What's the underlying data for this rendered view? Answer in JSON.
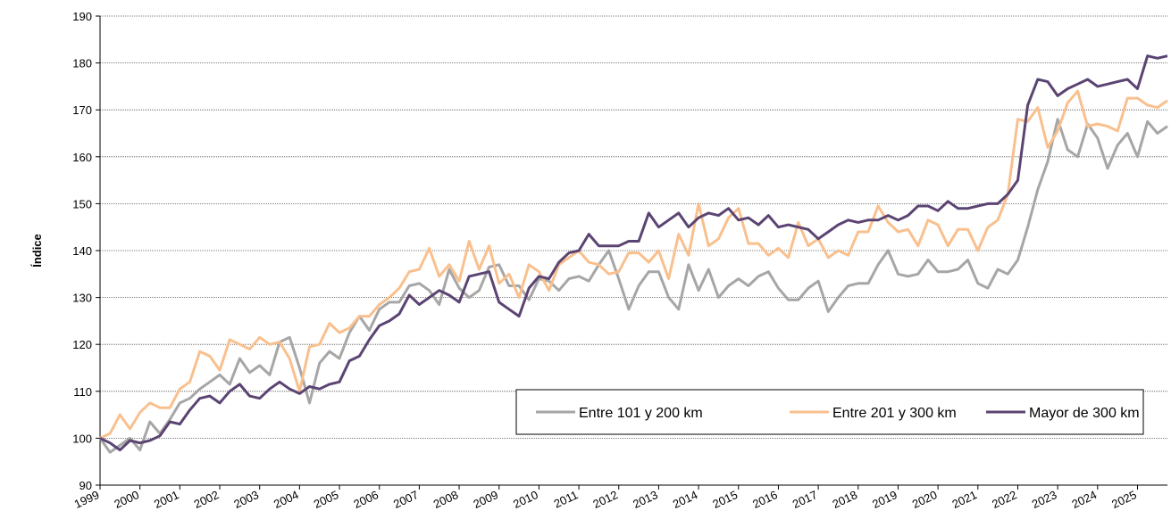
{
  "chart_data": {
    "type": "line",
    "ylabel": "Índice",
    "x": [
      1999,
      1999.25,
      1999.5,
      1999.75,
      2000,
      2000.25,
      2000.5,
      2000.75,
      2001,
      2001.25,
      2001.5,
      2001.75,
      2002,
      2002.25,
      2002.5,
      2002.75,
      2003,
      2003.25,
      2003.5,
      2003.75,
      2004,
      2004.25,
      2004.5,
      2004.75,
      2005,
      2005.25,
      2005.5,
      2005.75,
      2006,
      2006.25,
      2006.5,
      2006.75,
      2007,
      2007.25,
      2007.5,
      2007.75,
      2008,
      2008.25,
      2008.5,
      2008.75,
      2009,
      2009.25,
      2009.5,
      2009.75,
      2010,
      2010.25,
      2010.5,
      2010.75,
      2011,
      2011.25,
      2011.5,
      2011.75,
      2012,
      2012.25,
      2012.5,
      2012.75,
      2013,
      2013.25,
      2013.5,
      2013.75,
      2014,
      2014.25,
      2014.5,
      2014.75,
      2015,
      2015.25,
      2015.5,
      2015.75,
      2016,
      2016.25,
      2016.5,
      2016.75,
      2017,
      2017.25,
      2017.5,
      2017.75,
      2018,
      2018.25,
      2018.5,
      2018.75,
      2019,
      2019.25,
      2019.5,
      2019.75,
      2020,
      2020.25,
      2020.5,
      2020.75,
      2021,
      2021.25,
      2021.5,
      2021.75,
      2022,
      2022.25,
      2022.5,
      2022.75,
      2023,
      2023.25,
      2023.5,
      2023.75,
      2024,
      2024.25,
      2024.5,
      2024.75,
      2025,
      2025.25,
      2025.5,
      2025.75
    ],
    "series": [
      {
        "name": "Entre 101 y 200 km",
        "color": "#a6a6a6",
        "values": [
          100,
          97,
          98.5,
          100,
          97.5,
          103.5,
          101,
          104,
          107.5,
          108.5,
          110.5,
          112,
          113.5,
          111.5,
          117,
          114,
          115.5,
          113.5,
          120.5,
          121.5,
          115,
          107.5,
          116,
          118.5,
          117,
          122.5,
          126,
          123,
          127.5,
          129,
          129,
          132.5,
          133,
          131.5,
          128.5,
          136,
          132,
          130,
          131.5,
          136.5,
          137,
          132.5,
          132.5,
          129.5,
          134,
          133.5,
          131.5,
          134,
          134.5,
          133.5,
          137,
          140,
          134,
          127.5,
          132.5,
          135.5,
          135.5,
          130,
          127.5,
          137,
          131.5,
          136,
          130,
          132.5,
          134,
          132.5,
          134.5,
          135.5,
          132,
          129.5,
          129.5,
          132,
          133.5,
          127,
          130,
          132.5,
          133,
          133,
          137,
          140,
          135,
          134.5,
          135,
          138,
          135.5,
          135.5,
          136,
          138,
          133,
          132,
          136,
          135,
          138,
          145,
          153,
          159,
          168,
          161.5,
          160,
          167,
          164,
          157.5,
          162.5,
          165,
          160,
          167.5,
          165,
          166.5
        ]
      },
      {
        "name": "Entre 201 y 300 km",
        "color": "#f9c08e",
        "values": [
          100,
          101,
          105,
          102,
          105.5,
          107.5,
          106.5,
          106.5,
          110.5,
          112,
          118.5,
          117.5,
          114.5,
          121,
          120,
          119,
          121.5,
          120,
          120.5,
          117,
          110,
          119.5,
          120,
          124.5,
          122.5,
          123.5,
          126,
          126,
          128.5,
          130,
          132,
          135.5,
          136,
          140.5,
          134.5,
          137,
          133.5,
          142,
          136,
          141,
          133,
          135,
          130,
          137,
          135.5,
          131.5,
          137,
          138.5,
          140,
          137.5,
          137,
          135,
          135.5,
          139.5,
          139.5,
          137.5,
          140,
          134,
          143.5,
          139,
          150,
          141,
          142.5,
          147,
          149,
          141.5,
          141.5,
          139,
          140.5,
          138.5,
          146,
          141,
          142.5,
          138.5,
          140,
          139,
          144,
          144,
          149.5,
          146,
          144,
          144.5,
          141,
          146.5,
          145.5,
          141,
          144.5,
          144.5,
          140,
          145,
          146.5,
          152,
          168,
          167.5,
          170.5,
          162,
          165.5,
          171.5,
          174,
          166.5,
          167,
          166.5,
          165.5,
          172.5,
          172.5,
          171,
          170.5,
          172
        ]
      },
      {
        "name": "Mayor de 300 km",
        "color": "#5b4472",
        "values": [
          100,
          99,
          97.5,
          99.5,
          99,
          99.5,
          100.5,
          103.5,
          103,
          106,
          108.5,
          109,
          107.5,
          110,
          111.5,
          109,
          108.5,
          110.5,
          112,
          110.5,
          109.5,
          111,
          110.5,
          111.5,
          112,
          116.5,
          117.5,
          121,
          124,
          125,
          126.5,
          130.5,
          128.5,
          130,
          131.5,
          130.5,
          129,
          134.5,
          135,
          135.5,
          129,
          127.5,
          126,
          132,
          134.5,
          134,
          137.5,
          139.5,
          140,
          143.5,
          141,
          141,
          141,
          142,
          142,
          148,
          145,
          146.5,
          148,
          145,
          147,
          148,
          147.5,
          149,
          146.5,
          147,
          145.5,
          147.5,
          145,
          145.5,
          145,
          144.5,
          142.5,
          144,
          145.5,
          146.5,
          146,
          146.5,
          146.5,
          147.5,
          146.5,
          147.5,
          149.5,
          149.5,
          148.5,
          150.5,
          149,
          149,
          149.5,
          150,
          150,
          152,
          155,
          171,
          176.5,
          176,
          173,
          174.5,
          175.5,
          176.5,
          175,
          175.5,
          176,
          176.5,
          174.5,
          181.5,
          181,
          181.5
        ]
      }
    ],
    "xlim": [
      1999,
      2025.75
    ],
    "xticks": [
      1999,
      2000,
      2001,
      2002,
      2003,
      2004,
      2005,
      2006,
      2007,
      2008,
      2009,
      2010,
      2011,
      2012,
      2013,
      2014,
      2015,
      2016,
      2017,
      2018,
      2019,
      2020,
      2021,
      2022,
      2023,
      2024,
      2025
    ],
    "ylim": [
      90,
      190
    ],
    "yticks": [
      90,
      100,
      110,
      120,
      130,
      140,
      150,
      160,
      170,
      180,
      190
    ],
    "grid": true
  }
}
